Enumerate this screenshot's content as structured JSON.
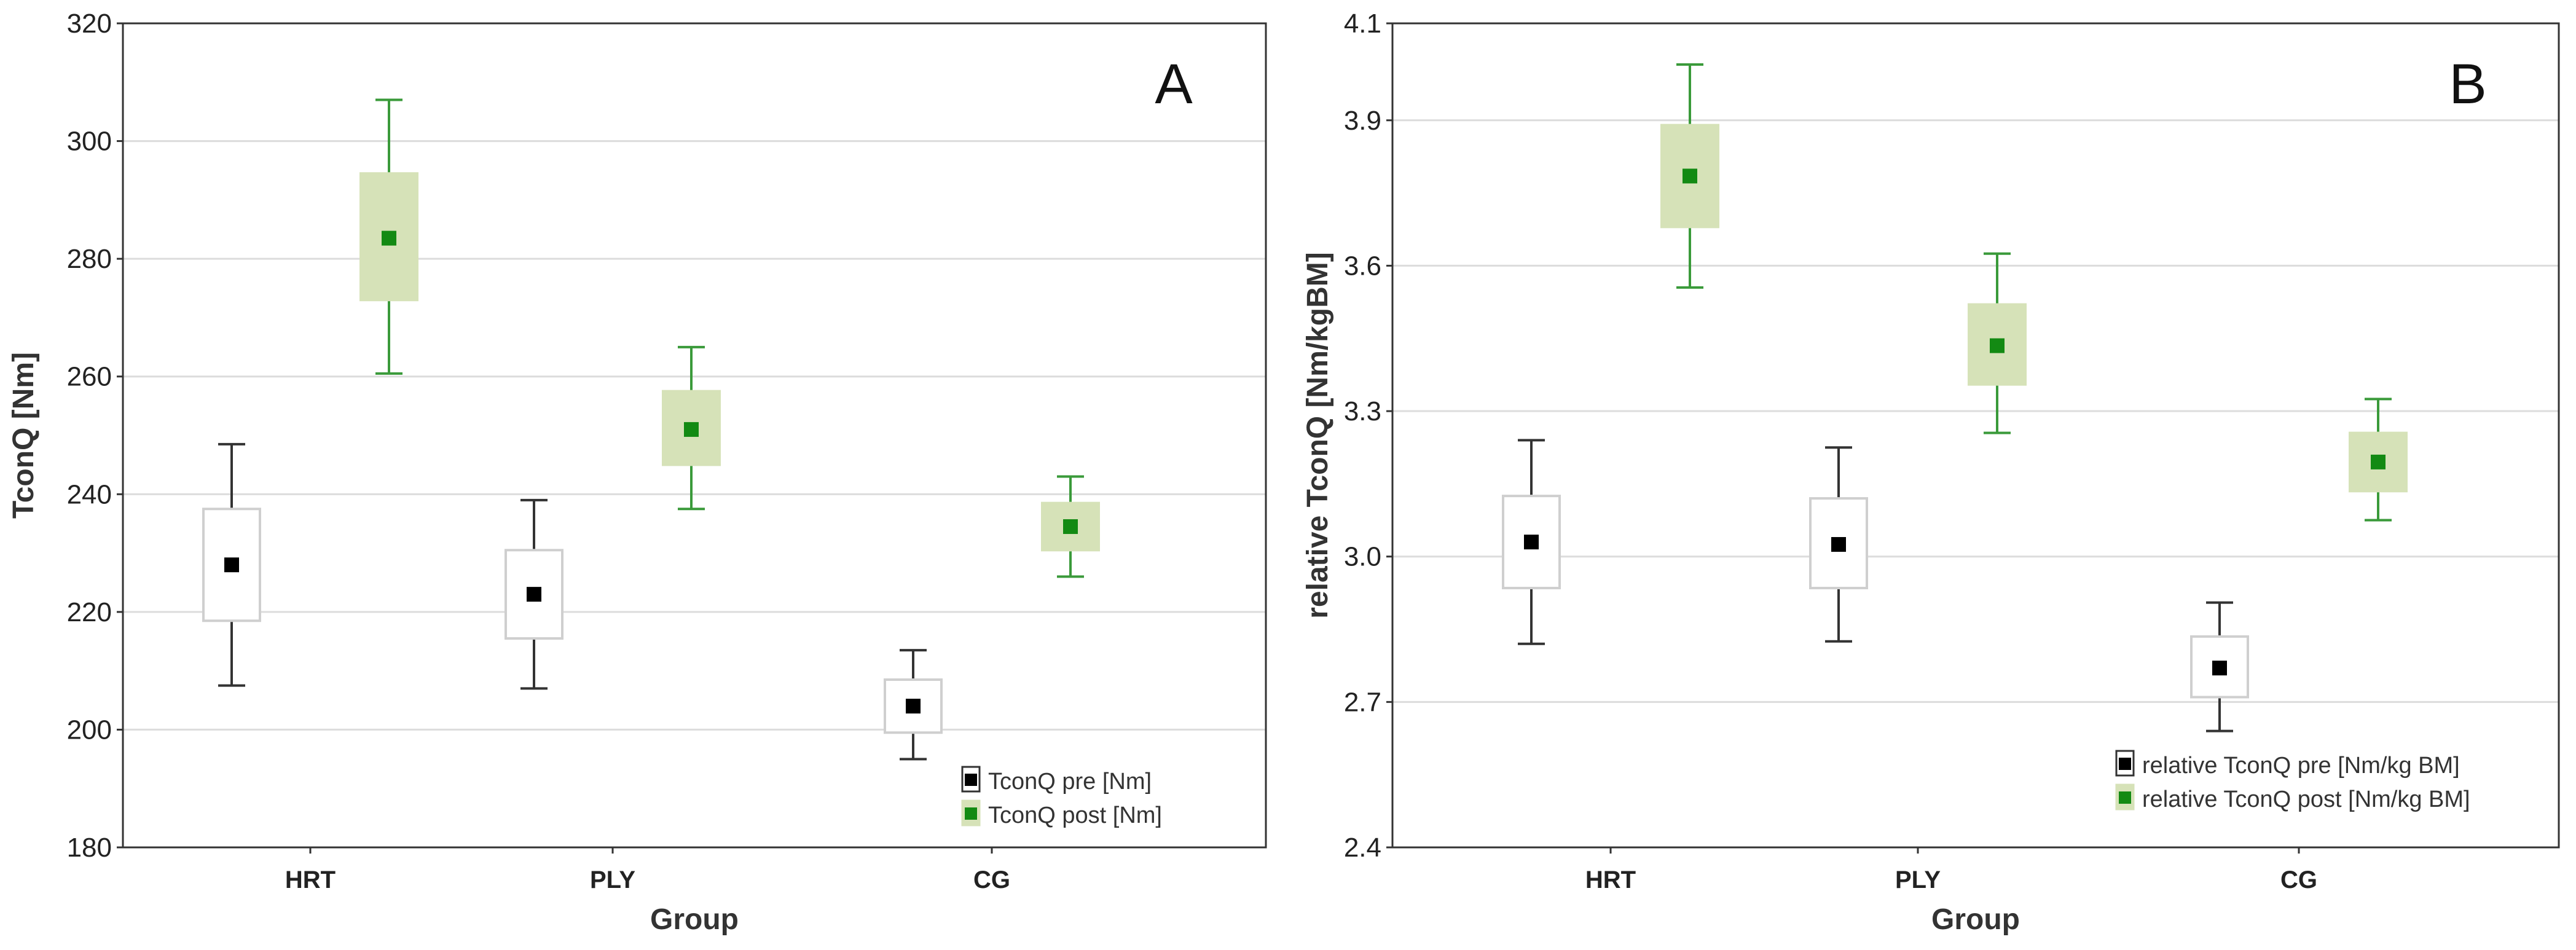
{
  "colors": {
    "pre_stroke": "#333333",
    "pre_fill": "#ffffff",
    "pre_marker": "#000000",
    "post_stroke": "#3a9a3a",
    "post_fill": "#d6e2b8",
    "post_marker": "#138a13",
    "grid": "#dcdcdc",
    "frame": "#333333"
  },
  "chart_data": [
    {
      "type": "box",
      "panel_label": "A",
      "xlabel": "Group",
      "ylabel": "TconQ [Nm]",
      "ylim": [
        180,
        320
      ],
      "yticks": [
        180,
        200,
        220,
        240,
        260,
        280,
        300,
        320
      ],
      "ytick_labels": [
        "180",
        "200",
        "220",
        "240",
        "260",
        "280",
        "300",
        "320"
      ],
      "categories": [
        "HRT",
        "PLY",
        "CG"
      ],
      "legend_position": "bottom-right",
      "series": [
        {
          "name": "TconQ pre [Nm]",
          "key": "pre",
          "mean": [
            228,
            223,
            204
          ],
          "box_low": [
            218.5,
            215.5,
            199.5
          ],
          "box_high": [
            237.5,
            230.5,
            208.5
          ],
          "whisker_low": [
            207.5,
            207,
            195
          ],
          "whisker_high": [
            248.5,
            239,
            213.5
          ]
        },
        {
          "name": "TconQ post [Nm]",
          "key": "post",
          "mean": [
            283.5,
            251,
            234.5
          ],
          "box_low": [
            273,
            245,
            230.5
          ],
          "box_high": [
            294.5,
            257.5,
            238.5
          ],
          "whisker_low": [
            260.5,
            237.5,
            226
          ],
          "whisker_high": [
            307,
            265,
            243
          ]
        }
      ]
    },
    {
      "type": "box",
      "panel_label": "B",
      "xlabel": "Group",
      "ylabel": "relative TconQ [Nm/kgBM]",
      "ylim": [
        2.4,
        4.1
      ],
      "yticks": [
        2.4,
        2.7,
        3.0,
        3.3,
        3.6,
        3.9,
        4.1
      ],
      "ytick_labels": [
        "2.4",
        "2.7",
        "3.0",
        "3.3",
        "3.6",
        "3.9",
        "4.1"
      ],
      "categories": [
        "HRT",
        "PLY",
        "CG"
      ],
      "legend_position": "bottom-right",
      "series": [
        {
          "name": "relative TconQ pre [Nm/kg BM]",
          "key": "pre",
          "mean": [
            3.03,
            3.025,
            2.77
          ],
          "box_low": [
            2.935,
            2.935,
            2.71
          ],
          "box_high": [
            3.125,
            3.12,
            2.835
          ],
          "whisker_low": [
            2.82,
            2.825,
            2.64
          ],
          "whisker_high": [
            3.24,
            3.225,
            2.905
          ]
        },
        {
          "name": "relative TconQ post [Nm/kg BM]",
          "key": "post",
          "mean": [
            3.785,
            3.435,
            3.195
          ],
          "box_low": [
            3.68,
            3.355,
            3.135
          ],
          "box_high": [
            3.89,
            3.52,
            3.255
          ],
          "whisker_low": [
            3.555,
            3.255,
            3.075
          ],
          "whisker_high": [
            4.015,
            3.625,
            3.325
          ]
        }
      ]
    }
  ]
}
